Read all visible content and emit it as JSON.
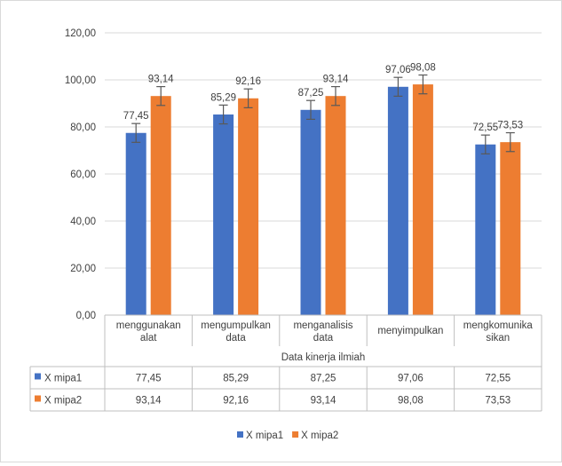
{
  "chart_data": {
    "type": "bar",
    "title": "",
    "xlabel": "Data kinerja ilmiah",
    "ylabel": "",
    "ylim": [
      0,
      120
    ],
    "yticks": [
      "0,00",
      "20,00",
      "40,00",
      "60,00",
      "80,00",
      "100,00",
      "120,00"
    ],
    "ytick_values": [
      0,
      20,
      40,
      60,
      80,
      100,
      120
    ],
    "categories": [
      [
        "menggunakan",
        "alat"
      ],
      [
        "mengumpulkan",
        "data"
      ],
      [
        "menganalisis",
        "data"
      ],
      [
        "menyimpulkan"
      ],
      [
        "mengkomunika",
        "sikan"
      ]
    ],
    "series": [
      {
        "name": "X mipa1",
        "color": "#4472c4",
        "values": [
          77.45,
          85.29,
          87.25,
          97.06,
          72.55
        ],
        "labels": [
          "77,45",
          "85,29",
          "87,25",
          "97,06",
          "72,55"
        ]
      },
      {
        "name": "X mipa2",
        "color": "#ed7d31",
        "values": [
          93.14,
          92.16,
          93.14,
          98.08,
          73.53
        ],
        "labels": [
          "93,14",
          "92,16",
          "93,14",
          "98,08",
          "73,53"
        ]
      }
    ],
    "error_bar": 4,
    "grid": true,
    "legend_position": "bottom",
    "data_table": true
  }
}
